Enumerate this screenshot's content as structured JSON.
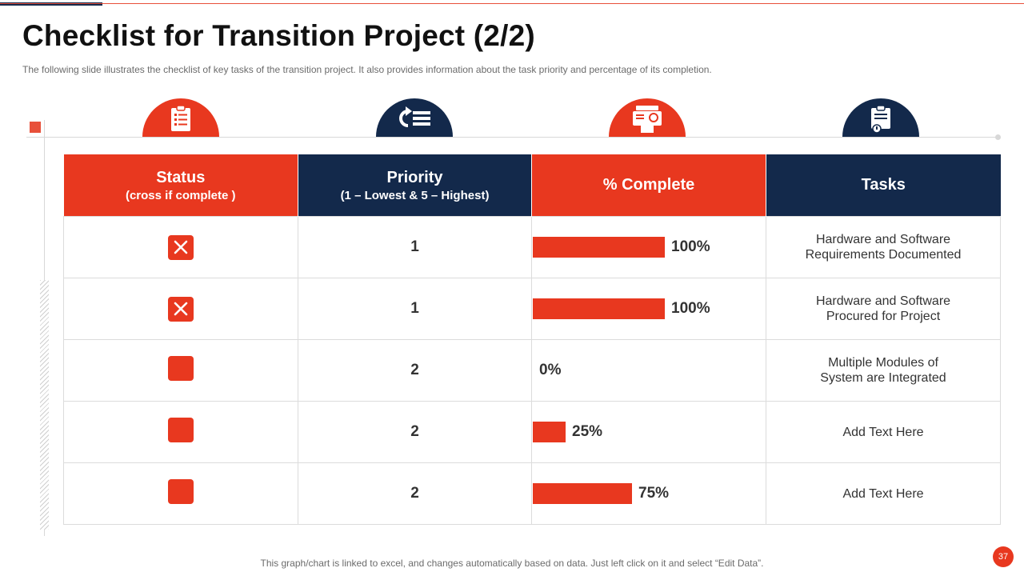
{
  "slide": {
    "title": "Checklist for Transition Project (2/2)",
    "subtitle": "The following  slide illustrates the checklist of key tasks of the transition project. It also provides  information  about the task priority and percentage  of its completion.",
    "footer_note": "This graph/chart is linked to excel, and changes automatically based on data. Just left click on it and select “Edit Data”.",
    "page_number": "37"
  },
  "icons": [
    {
      "name": "clipboard-list-icon",
      "color": "#e8381f"
    },
    {
      "name": "refresh-list-icon",
      "color": "#13294b"
    },
    {
      "name": "report-document-icon",
      "color": "#e8381f"
    },
    {
      "name": "clipboard-alert-icon",
      "color": "#13294b"
    }
  ],
  "table": {
    "headers": {
      "status": {
        "main": "Status",
        "sub": "(cross if complete )"
      },
      "priority": {
        "main": "Priority",
        "sub": "(1 – Lowest & 5 – Highest)"
      },
      "complete": {
        "main": "% Complete"
      },
      "tasks": {
        "main": "Tasks"
      }
    },
    "rows": [
      {
        "complete": true,
        "priority": "1",
        "percent": 100,
        "percent_label": "100%",
        "task_line1": "Hardware and Software",
        "task_line2": "Requirements  Documented"
      },
      {
        "complete": true,
        "priority": "1",
        "percent": 100,
        "percent_label": "100%",
        "task_line1": "Hardware and Software",
        "task_line2": "Procured for Project"
      },
      {
        "complete": false,
        "priority": "2",
        "percent": 0,
        "percent_label": "0%",
        "task_line1": "Multiple Modules of",
        "task_line2": "System are Integrated"
      },
      {
        "complete": false,
        "priority": "2",
        "percent": 25,
        "percent_label": "25%",
        "task_line1": "Add Text Here",
        "task_line2": ""
      },
      {
        "complete": false,
        "priority": "2",
        "percent": 75,
        "percent_label": "75%",
        "task_line1": "Add Text Here",
        "task_line2": ""
      }
    ]
  },
  "colors": {
    "accent": "#e8381f",
    "navy": "#13294b"
  }
}
